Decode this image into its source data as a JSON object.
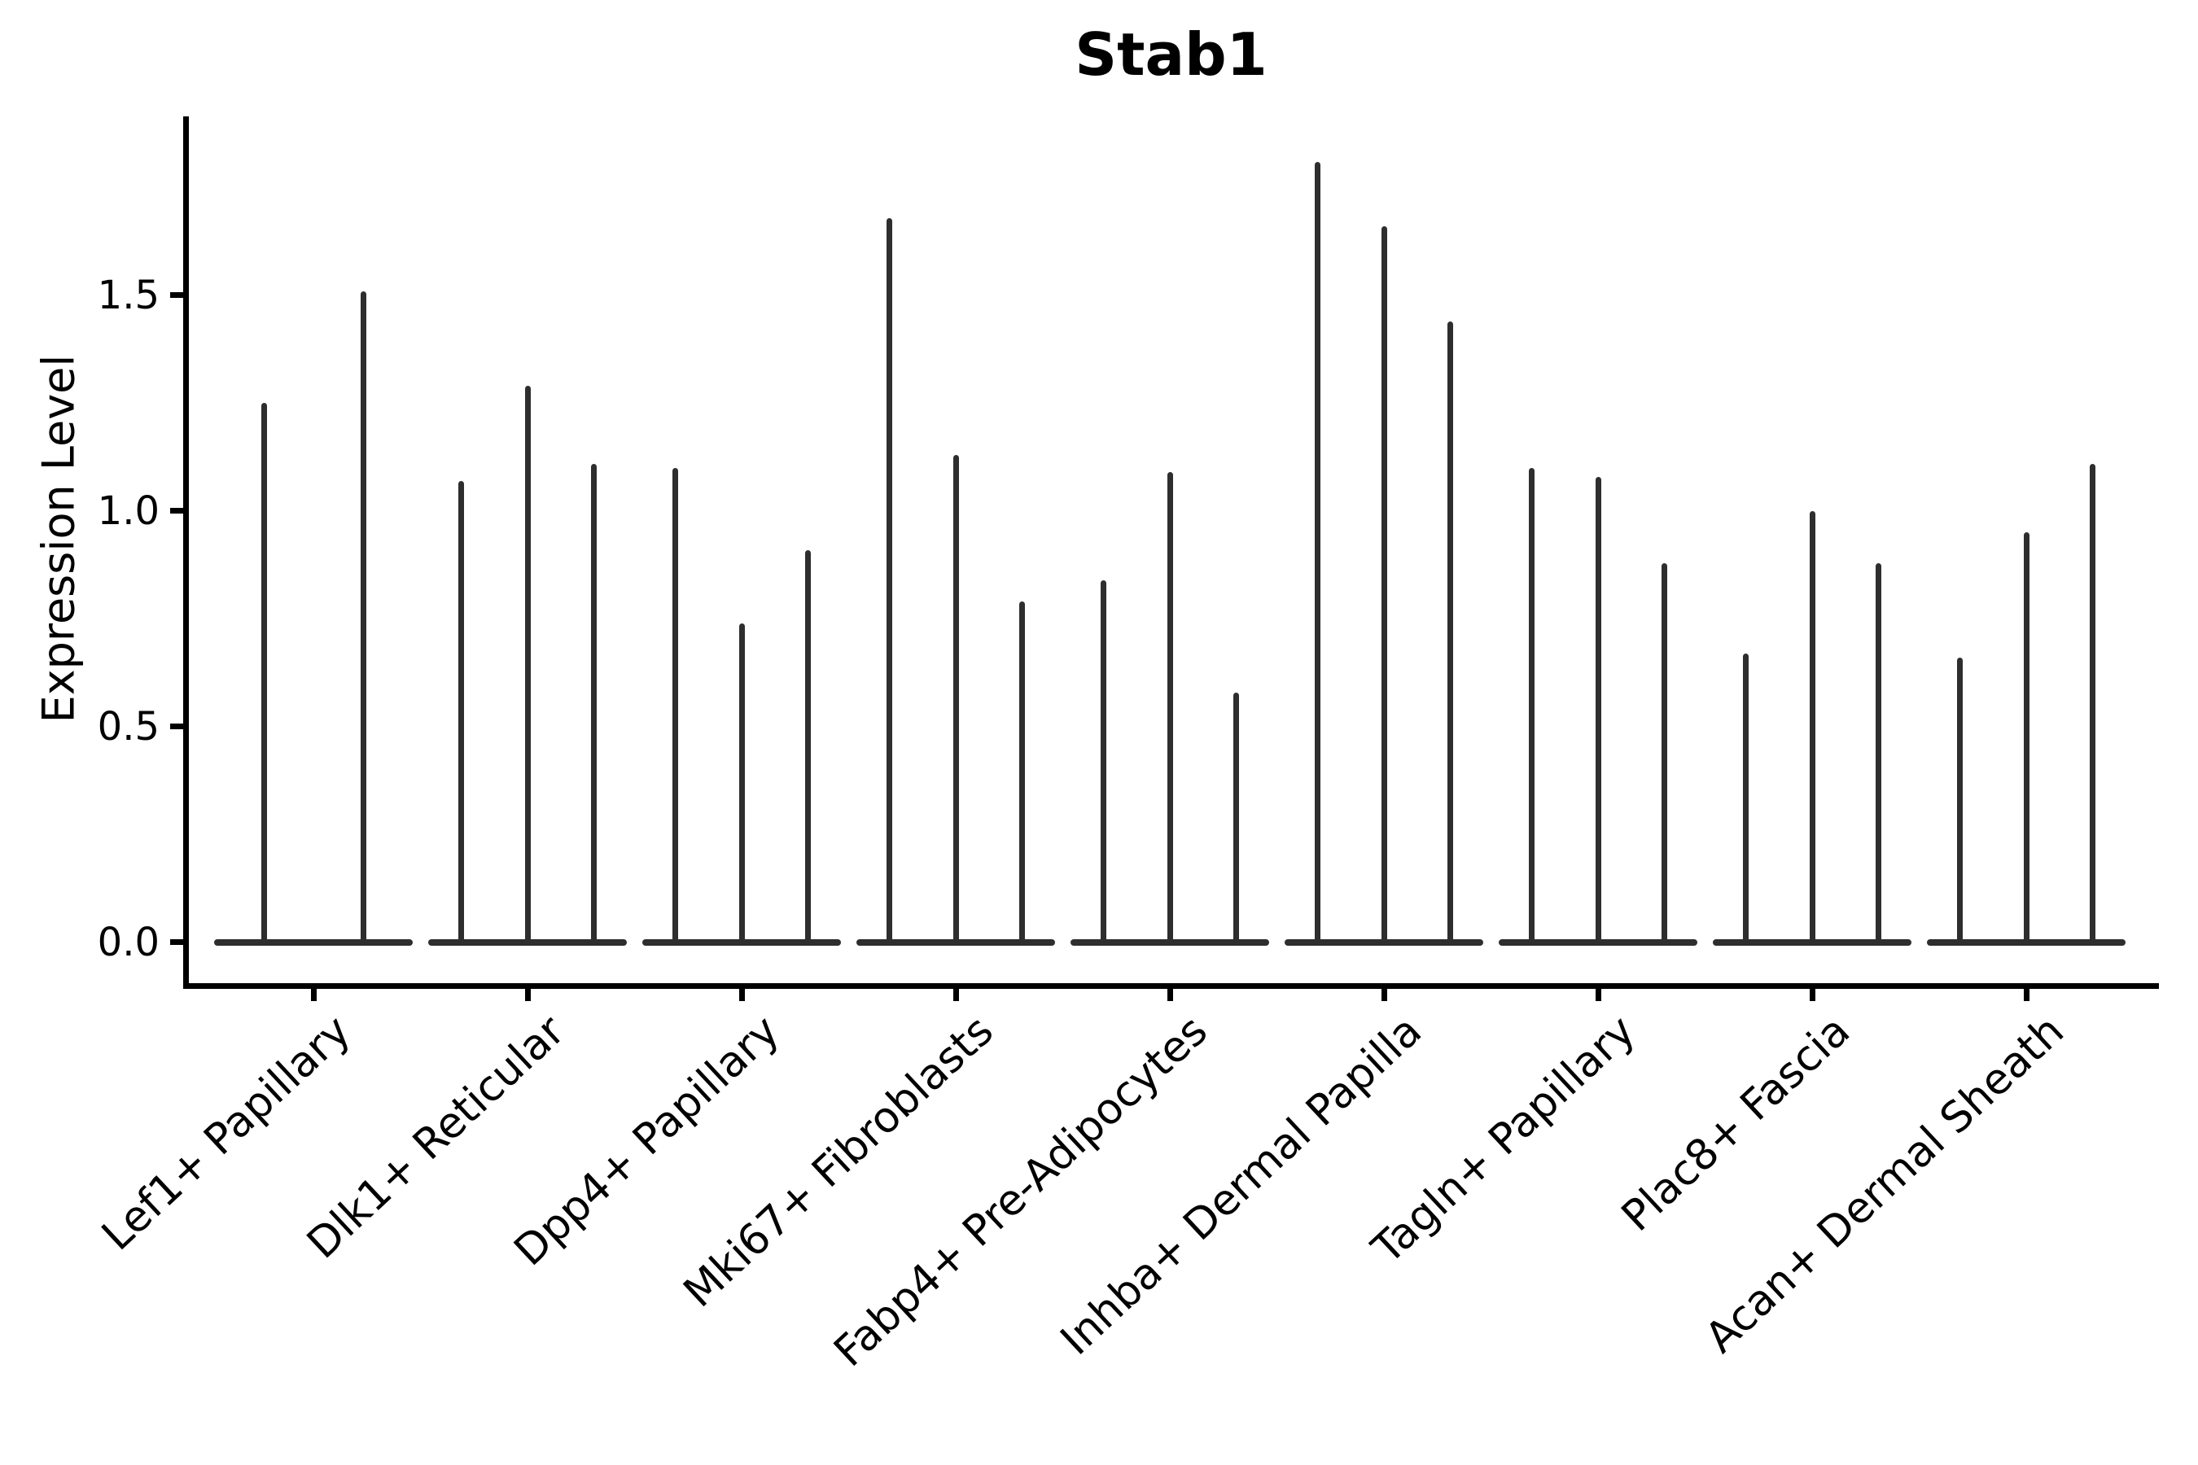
{
  "chart_data": {
    "type": "violin",
    "title": "Stab1",
    "ylabel": "Expression Level",
    "xlabel": "",
    "ytick_labels": [
      "0.0",
      "0.5",
      "1.0",
      "1.5"
    ],
    "ytick_values": [
      0,
      0.5,
      1.0,
      1.5
    ],
    "ylim": [
      -0.09,
      1.9
    ],
    "grid": false,
    "legend_position": "none",
    "x_tick_rotation_deg": 43,
    "violin_shape_note": "each violin is a needle-thin vertical spike rising from a flat wide base at expression 0",
    "groups": [
      {
        "category": "Lef1+ Papillary",
        "violin_max_values": [
          1.25,
          1.51
        ]
      },
      {
        "category": "Dlk1+ Reticular",
        "violin_max_values": [
          1.07,
          1.29,
          1.11
        ]
      },
      {
        "category": "Dpp4+ Papillary",
        "violin_max_values": [
          1.1,
          0.74,
          0.91
        ]
      },
      {
        "category": "Mki67+ Fibroblasts",
        "violin_max_values": [
          1.68,
          1.13,
          0.79
        ]
      },
      {
        "category": "Fabp4+ Pre-Adipocytes",
        "violin_max_values": [
          0.84,
          1.09,
          0.58
        ]
      },
      {
        "category": "Inhba+ Dermal Papilla",
        "violin_max_values": [
          1.81,
          1.66,
          1.44
        ]
      },
      {
        "category": "Tagln+ Papillary",
        "violin_max_values": [
          1.1,
          1.08,
          0.88
        ]
      },
      {
        "category": "Plac8+ Fascia",
        "violin_max_values": [
          0.67,
          1.0,
          0.88
        ]
      },
      {
        "category": "Acan+ Dermal Sheath",
        "violin_max_values": [
          0.66,
          0.95,
          1.11
        ]
      }
    ],
    "colors": {
      "violin": "#2e2e2e",
      "axis": "#000000",
      "text": "#000000",
      "background": "#ffffff"
    }
  }
}
